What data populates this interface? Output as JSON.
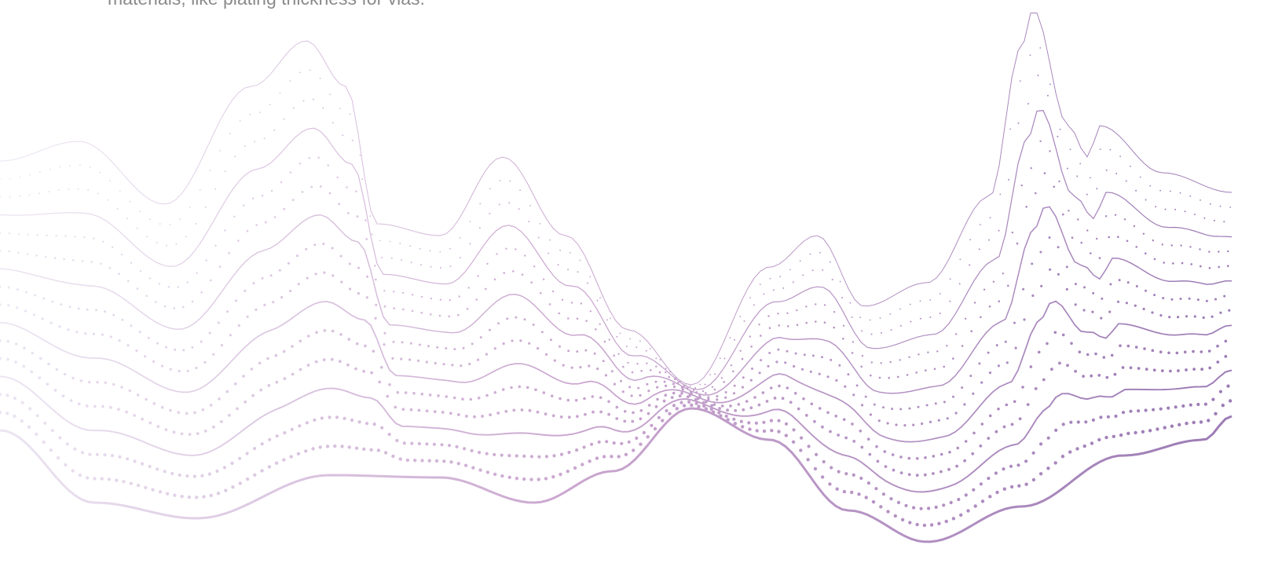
{
  "intro": {
    "text": "materials, like plating thickness for vias."
  },
  "graphic": {
    "description_icon": "wave-mesh-graphic",
    "color_start": "#ece5f2",
    "color_mid": "#caa6cf",
    "color_end": "#9878b3"
  }
}
